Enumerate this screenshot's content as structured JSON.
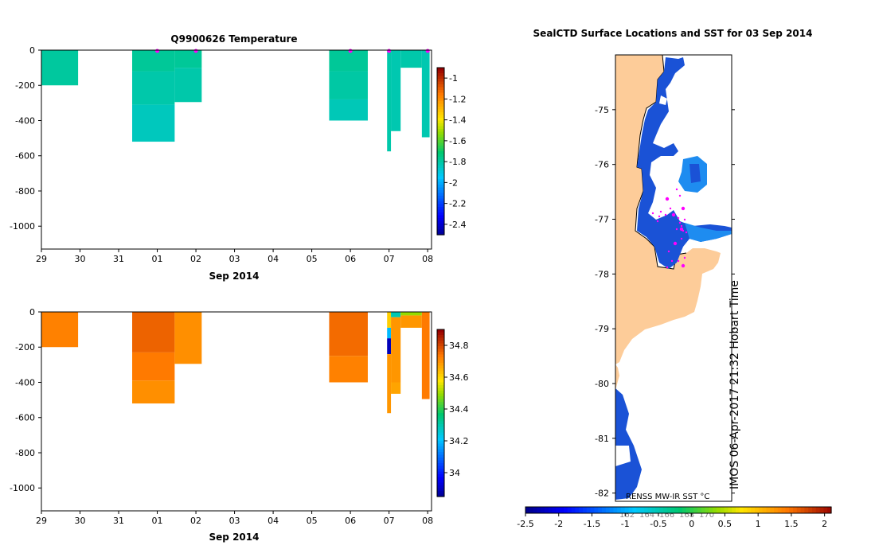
{
  "chart_data": [
    {
      "type": "heatmap",
      "title": "Q9900626  Temperature",
      "xlabel": "Sep 2014",
      "ylabel": "",
      "x_ticks": [
        "29",
        "30",
        "31",
        "01",
        "02",
        "03",
        "04",
        "05",
        "06",
        "07",
        "08"
      ],
      "y_ticks": [
        "0",
        "-200",
        "-400",
        "-600",
        "-800",
        "-1000"
      ],
      "ylim": [
        -1130,
        0
      ],
      "xlim": [
        29,
        39.1
      ],
      "colorbar": {
        "min": -2.5,
        "max": -0.9,
        "ticks": [
          "-1",
          "-1.2",
          "-1.4",
          "-1.6",
          "-1.8",
          "-2",
          "-2.2",
          "-2.4"
        ],
        "tick_values": [
          -1,
          -1.2,
          -1.4,
          -1.6,
          -1.8,
          -2,
          -2.2,
          -2.4
        ]
      },
      "marker_x": [
        32.0,
        33.0,
        37.0,
        38.0,
        39.0
      ],
      "profiles": [
        {
          "x0": 29.0,
          "x1": 29.95,
          "bins": [
            {
              "d0": 0,
              "d1": 200,
              "v": -1.78
            }
          ]
        },
        {
          "x0": 31.35,
          "x1": 32.45,
          "bins": [
            {
              "d0": 0,
              "d1": 120,
              "v": -1.77
            },
            {
              "d0": 120,
              "d1": 310,
              "v": -1.8
            },
            {
              "d0": 310,
              "d1": 520,
              "v": -1.83
            }
          ]
        },
        {
          "x0": 32.45,
          "x1": 33.15,
          "bins": [
            {
              "d0": 0,
              "d1": 100,
              "v": -1.77
            },
            {
              "d0": 100,
              "d1": 295,
              "v": -1.8
            }
          ]
        },
        {
          "x0": 36.45,
          "x1": 37.45,
          "bins": [
            {
              "d0": 0,
              "d1": 120,
              "v": -1.77
            },
            {
              "d0": 120,
              "d1": 280,
              "v": -1.79
            },
            {
              "d0": 280,
              "d1": 400,
              "v": -1.82
            }
          ]
        },
        {
          "x0": 37.95,
          "x1": 38.05,
          "bins": [
            {
              "d0": 0,
              "d1": 575,
              "v": -1.8
            }
          ]
        },
        {
          "x0": 38.05,
          "x1": 38.3,
          "bins": [
            {
              "d0": 0,
              "d1": 460,
              "v": -1.81
            }
          ]
        },
        {
          "x0": 38.3,
          "x1": 38.85,
          "bins": [
            {
              "d0": 0,
              "d1": 100,
              "v": -1.8
            }
          ]
        },
        {
          "x0": 38.85,
          "x1": 39.05,
          "bins": [
            {
              "d0": 0,
              "d1": 495,
              "v": -1.81
            }
          ]
        }
      ]
    },
    {
      "type": "heatmap",
      "title": "",
      "xlabel": "Sep 2014",
      "ylabel": "",
      "x_ticks": [
        "29",
        "30",
        "31",
        "01",
        "02",
        "03",
        "04",
        "05",
        "06",
        "07",
        "08"
      ],
      "y_ticks": [
        "0",
        "-200",
        "-400",
        "-600",
        "-800",
        "-1000"
      ],
      "ylim": [
        -1130,
        0
      ],
      "xlim": [
        29,
        39.1
      ],
      "colorbar": {
        "min": 33.85,
        "max": 34.9,
        "ticks": [
          "34.8",
          "34.6",
          "34.4",
          "34.2",
          "34"
        ],
        "tick_values": [
          34.8,
          34.6,
          34.4,
          34.2,
          34.0
        ]
      },
      "marker_x": [],
      "profiles": [
        {
          "x0": 29.0,
          "x1": 29.95,
          "bins": [
            {
              "d0": 0,
              "d1": 200,
              "v": 34.73
            }
          ]
        },
        {
          "x0": 31.35,
          "x1": 32.45,
          "bins": [
            {
              "d0": 0,
              "d1": 230,
              "v": 34.77
            },
            {
              "d0": 230,
              "d1": 390,
              "v": 34.74
            },
            {
              "d0": 390,
              "d1": 520,
              "v": 34.71
            }
          ]
        },
        {
          "x0": 32.45,
          "x1": 33.15,
          "bins": [
            {
              "d0": 0,
              "d1": 295,
              "v": 34.71
            }
          ]
        },
        {
          "x0": 36.45,
          "x1": 37.45,
          "bins": [
            {
              "d0": 0,
              "d1": 250,
              "v": 34.76
            },
            {
              "d0": 250,
              "d1": 400,
              "v": 34.73
            }
          ]
        },
        {
          "x0": 37.95,
          "x1": 38.05,
          "bins": [
            {
              "d0": 0,
              "d1": 90,
              "v": 34.62
            },
            {
              "d0": 90,
              "d1": 150,
              "v": 34.2
            },
            {
              "d0": 150,
              "d1": 240,
              "v": 33.9
            },
            {
              "d0": 240,
              "d1": 575,
              "v": 34.7
            }
          ]
        },
        {
          "x0": 38.05,
          "x1": 38.3,
          "bins": [
            {
              "d0": 0,
              "d1": 30,
              "v": 34.3
            },
            {
              "d0": 30,
              "d1": 400,
              "v": 34.7
            },
            {
              "d0": 400,
              "d1": 465,
              "v": 34.68
            }
          ]
        },
        {
          "x0": 38.3,
          "x1": 38.85,
          "bins": [
            {
              "d0": 0,
              "d1": 20,
              "v": 34.5
            },
            {
              "d0": 20,
              "d1": 90,
              "v": 34.7
            }
          ]
        },
        {
          "x0": 38.85,
          "x1": 39.05,
          "bins": [
            {
              "d0": 0,
              "d1": 495,
              "v": 34.74
            }
          ]
        }
      ]
    },
    {
      "type": "heatmap",
      "title": "SealCTD Surface Locations and SST for 03 Sep 2014",
      "y_ticks": [
        "-75",
        "-76",
        "-77",
        "-78",
        "-79",
        "-80",
        "-81",
        "-82"
      ],
      "ylim": [
        -82.15,
        -74.0
      ],
      "inner_label": "RENSS MW-IR SST °C",
      "side_label": "IMOS 06-Apr-2017 21:32 Hobart Time",
      "colorbar": {
        "min": -2.5,
        "max": 2.1,
        "ticks": [
          "-2.5",
          "-2",
          "-1.5",
          "-1",
          "-0.5",
          "0",
          "0.5",
          "1",
          "1.5",
          "2"
        ],
        "tick_values": [
          -2.5,
          -2,
          -1.5,
          -1,
          -0.5,
          0,
          0.5,
          1,
          1.5,
          2
        ]
      },
      "faint_labels": [
        "162",
        "164",
        "166",
        "168",
        "170"
      ],
      "colors": {
        "land": "#fdcc99",
        "sst": "#1a52d6",
        "sst_light": "#1e8cf0",
        "track": "#ff00ff"
      }
    }
  ]
}
